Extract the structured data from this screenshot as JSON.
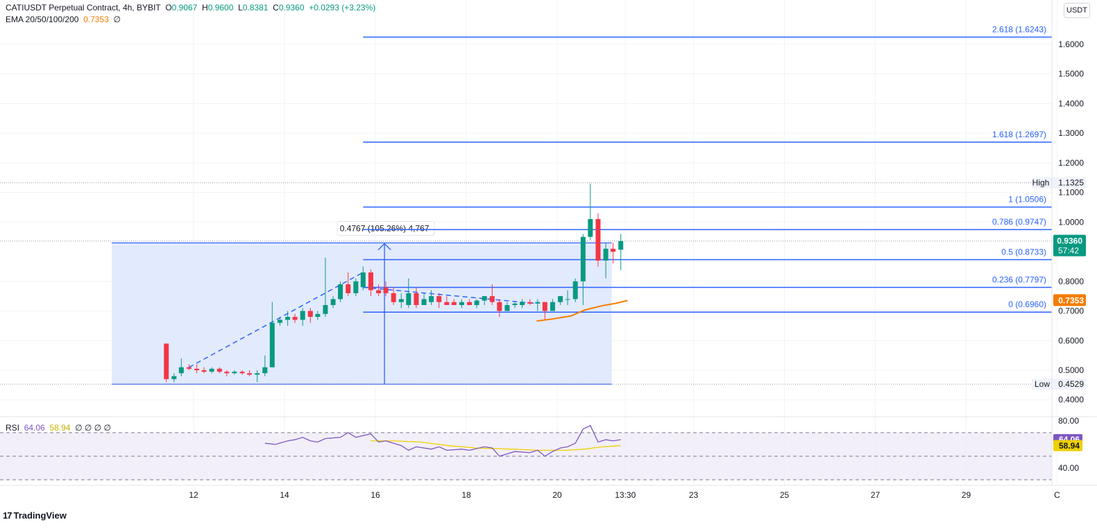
{
  "header": {
    "symbol": "CATIUSDT Perpetual Contract, 4h, BYBIT",
    "o_label": "O",
    "o": "0.9067",
    "h_label": "H",
    "h": "0.9600",
    "l_label": "L",
    "l": "0.8381",
    "c_label": "C",
    "c": "0.9360",
    "change": "+0.0293 (+3.23%)",
    "ema_label": "EMA 20/50/100/200",
    "ema_value": "0.7353",
    "ema_extra": "∅"
  },
  "currency": "USDT",
  "brand": {
    "logo": "17",
    "name": "TradingView"
  },
  "rsi_legend": {
    "label": "RSI",
    "v1": "64.06",
    "v2": "58.94",
    "rest": "∅ ∅ ∅ ∅"
  },
  "colors": {
    "up": "#089981",
    "down": "#f23645",
    "fib": "#2962ff",
    "ema": "#f57c00",
    "rsi": "#7e57c2",
    "rsi_ma": "#f0d000",
    "range_fill": "#dde6fd"
  },
  "chart_data": {
    "type": "candlestick",
    "title": "CATIUSDT Perpetual Contract, 4h, BYBIT",
    "ylim": [
      0.4,
      1.68
    ],
    "y_ticks": [
      "1.6000",
      "1.5000",
      "1.4000",
      "1.3000",
      "1.2000",
      "1.1000",
      "1.0000",
      "0.8000",
      "0.7000",
      "0.6000",
      "0.5000",
      "0.4000"
    ],
    "x_ticks": [
      {
        "label": "12",
        "day": 12
      },
      {
        "label": "14",
        "day": 14
      },
      {
        "label": "16",
        "day": 16
      },
      {
        "label": "18",
        "day": 18
      },
      {
        "label": "20",
        "day": 20
      },
      {
        "label": "13:30",
        "day": 21.5
      },
      {
        "label": "23",
        "day": 23
      },
      {
        "label": "25",
        "day": 25
      },
      {
        "label": "27",
        "day": 27
      },
      {
        "label": "29",
        "day": 29
      },
      {
        "label": "C",
        "day": 31
      }
    ],
    "candles": [
      {
        "d": 11.4,
        "o": 0.59,
        "h": 0.59,
        "l": 0.46,
        "c": 0.47
      },
      {
        "d": 11.57,
        "o": 0.47,
        "h": 0.49,
        "l": 0.46,
        "c": 0.48
      },
      {
        "d": 11.73,
        "o": 0.49,
        "h": 0.54,
        "l": 0.48,
        "c": 0.51
      },
      {
        "d": 11.9,
        "o": 0.51,
        "h": 0.52,
        "l": 0.5,
        "c": 0.505
      },
      {
        "d": 12.07,
        "o": 0.505,
        "h": 0.52,
        "l": 0.49,
        "c": 0.5
      },
      {
        "d": 12.23,
        "o": 0.5,
        "h": 0.51,
        "l": 0.49,
        "c": 0.495
      },
      {
        "d": 12.4,
        "o": 0.495,
        "h": 0.51,
        "l": 0.49,
        "c": 0.505
      },
      {
        "d": 12.57,
        "o": 0.505,
        "h": 0.51,
        "l": 0.49,
        "c": 0.495
      },
      {
        "d": 12.73,
        "o": 0.495,
        "h": 0.5,
        "l": 0.48,
        "c": 0.49
      },
      {
        "d": 12.9,
        "o": 0.49,
        "h": 0.5,
        "l": 0.485,
        "c": 0.495
      },
      {
        "d": 13.07,
        "o": 0.495,
        "h": 0.5,
        "l": 0.485,
        "c": 0.49
      },
      {
        "d": 13.23,
        "o": 0.49,
        "h": 0.5,
        "l": 0.48,
        "c": 0.485
      },
      {
        "d": 13.4,
        "o": 0.485,
        "h": 0.5,
        "l": 0.46,
        "c": 0.49
      },
      {
        "d": 13.57,
        "o": 0.49,
        "h": 0.55,
        "l": 0.48,
        "c": 0.51
      },
      {
        "d": 13.73,
        "o": 0.51,
        "h": 0.73,
        "l": 0.51,
        "c": 0.66
      },
      {
        "d": 13.9,
        "o": 0.66,
        "h": 0.68,
        "l": 0.65,
        "c": 0.67
      },
      {
        "d": 14.07,
        "o": 0.67,
        "h": 0.7,
        "l": 0.65,
        "c": 0.68
      },
      {
        "d": 14.23,
        "o": 0.68,
        "h": 0.69,
        "l": 0.66,
        "c": 0.67
      },
      {
        "d": 14.4,
        "o": 0.67,
        "h": 0.71,
        "l": 0.65,
        "c": 0.7
      },
      {
        "d": 14.57,
        "o": 0.7,
        "h": 0.71,
        "l": 0.66,
        "c": 0.68
      },
      {
        "d": 14.73,
        "o": 0.68,
        "h": 0.7,
        "l": 0.67,
        "c": 0.69
      },
      {
        "d": 14.9,
        "o": 0.69,
        "h": 0.88,
        "l": 0.68,
        "c": 0.72
      },
      {
        "d": 15.07,
        "o": 0.72,
        "h": 0.75,
        "l": 0.71,
        "c": 0.74
      },
      {
        "d": 15.23,
        "o": 0.74,
        "h": 0.8,
        "l": 0.73,
        "c": 0.79
      },
      {
        "d": 15.4,
        "o": 0.79,
        "h": 0.83,
        "l": 0.75,
        "c": 0.76
      },
      {
        "d": 15.57,
        "o": 0.76,
        "h": 0.81,
        "l": 0.75,
        "c": 0.8
      },
      {
        "d": 15.73,
        "o": 0.78,
        "h": 0.85,
        "l": 0.77,
        "c": 0.83
      },
      {
        "d": 15.9,
        "o": 0.83,
        "h": 0.84,
        "l": 0.75,
        "c": 0.77
      },
      {
        "d": 16.07,
        "o": 0.77,
        "h": 0.79,
        "l": 0.75,
        "c": 0.76
      },
      {
        "d": 16.23,
        "o": 0.78,
        "h": 0.8,
        "l": 0.75,
        "c": 0.76
      },
      {
        "d": 16.4,
        "o": 0.76,
        "h": 0.78,
        "l": 0.72,
        "c": 0.73
      },
      {
        "d": 16.57,
        "o": 0.73,
        "h": 0.76,
        "l": 0.71,
        "c": 0.74
      },
      {
        "d": 16.73,
        "o": 0.72,
        "h": 0.81,
        "l": 0.71,
        "c": 0.76
      },
      {
        "d": 16.9,
        "o": 0.76,
        "h": 0.78,
        "l": 0.71,
        "c": 0.72
      },
      {
        "d": 17.07,
        "o": 0.72,
        "h": 0.76,
        "l": 0.72,
        "c": 0.74
      },
      {
        "d": 17.23,
        "o": 0.73,
        "h": 0.77,
        "l": 0.72,
        "c": 0.75
      },
      {
        "d": 17.4,
        "o": 0.75,
        "h": 0.76,
        "l": 0.71,
        "c": 0.73
      },
      {
        "d": 17.57,
        "o": 0.73,
        "h": 0.75,
        "l": 0.72,
        "c": 0.72
      },
      {
        "d": 17.73,
        "o": 0.73,
        "h": 0.74,
        "l": 0.72,
        "c": 0.72
      },
      {
        "d": 17.9,
        "o": 0.72,
        "h": 0.74,
        "l": 0.71,
        "c": 0.73
      },
      {
        "d": 18.07,
        "o": 0.73,
        "h": 0.74,
        "l": 0.72,
        "c": 0.72
      },
      {
        "d": 18.23,
        "o": 0.72,
        "h": 0.74,
        "l": 0.71,
        "c": 0.735
      },
      {
        "d": 18.4,
        "o": 0.735,
        "h": 0.75,
        "l": 0.72,
        "c": 0.75
      },
      {
        "d": 18.57,
        "o": 0.75,
        "h": 0.79,
        "l": 0.72,
        "c": 0.73
      },
      {
        "d": 18.73,
        "o": 0.73,
        "h": 0.74,
        "l": 0.68,
        "c": 0.7
      },
      {
        "d": 18.9,
        "o": 0.7,
        "h": 0.73,
        "l": 0.7,
        "c": 0.72
      },
      {
        "d": 19.07,
        "o": 0.72,
        "h": 0.73,
        "l": 0.71,
        "c": 0.725
      },
      {
        "d": 19.23,
        "o": 0.72,
        "h": 0.74,
        "l": 0.71,
        "c": 0.73
      },
      {
        "d": 19.4,
        "o": 0.73,
        "h": 0.74,
        "l": 0.72,
        "c": 0.725
      },
      {
        "d": 19.57,
        "o": 0.725,
        "h": 0.74,
        "l": 0.7,
        "c": 0.73
      },
      {
        "d": 19.73,
        "o": 0.73,
        "h": 0.73,
        "l": 0.67,
        "c": 0.7
      },
      {
        "d": 19.9,
        "o": 0.7,
        "h": 0.74,
        "l": 0.7,
        "c": 0.73
      },
      {
        "d": 20.07,
        "o": 0.73,
        "h": 0.75,
        "l": 0.72,
        "c": 0.75
      },
      {
        "d": 20.23,
        "o": 0.74,
        "h": 0.77,
        "l": 0.72,
        "c": 0.74
      },
      {
        "d": 20.4,
        "o": 0.74,
        "h": 0.81,
        "l": 0.73,
        "c": 0.8
      },
      {
        "d": 20.57,
        "o": 0.8,
        "h": 0.96,
        "l": 0.72,
        "c": 0.95
      },
      {
        "d": 20.73,
        "o": 0.95,
        "h": 1.13,
        "l": 0.94,
        "c": 1.01
      },
      {
        "d": 20.9,
        "o": 1.01,
        "h": 1.03,
        "l": 0.85,
        "c": 0.87
      },
      {
        "d": 21.07,
        "o": 0.87,
        "h": 0.93,
        "l": 0.81,
        "c": 0.91
      },
      {
        "d": 21.23,
        "o": 0.91,
        "h": 0.93,
        "l": 0.86,
        "c": 0.9
      },
      {
        "d": 21.4,
        "o": 0.9067,
        "h": 0.96,
        "l": 0.8381,
        "c": 0.936
      }
    ],
    "ema": [
      {
        "d": 19.55,
        "v": 0.666
      },
      {
        "d": 19.9,
        "v": 0.673
      },
      {
        "d": 20.3,
        "v": 0.683
      },
      {
        "d": 20.6,
        "v": 0.703
      },
      {
        "d": 21.0,
        "v": 0.718
      },
      {
        "d": 21.3,
        "v": 0.726
      },
      {
        "d": 21.55,
        "v": 0.7353
      }
    ],
    "fib": {
      "x_start": 15.73,
      "x_end": 31,
      "levels": [
        {
          "label": "0 (0.6960)",
          "value": 0.696
        },
        {
          "label": "0.236 (0.7797)",
          "value": 0.7797
        },
        {
          "label": "0.5 (0.8733)",
          "value": 0.8733
        },
        {
          "label": "0.786 (0.9747)",
          "value": 0.9747
        },
        {
          "label": "1 (1.0506)",
          "value": 1.0506
        },
        {
          "label": "1.618 (1.2697)",
          "value": 1.2697
        },
        {
          "label": "2.618 (1.6243)",
          "value": 1.6243
        }
      ]
    },
    "range": {
      "x_start": 10.2,
      "x_end": 21.2,
      "low": 0.4529,
      "high": 0.9296,
      "arrow_x": 16.2,
      "label": "0.4767 (105.26%) 4,767"
    },
    "trend_dashes": [
      [
        {
          "d": 11.9,
          "v": 0.51
        },
        {
          "d": 15.73,
          "v": 0.83
        }
      ],
      [
        {
          "d": 15.73,
          "v": 0.78
        },
        {
          "d": 19.55,
          "v": 0.725
        }
      ]
    ],
    "high_line": {
      "label": "High",
      "value": 1.1325,
      "text": "1.1325"
    },
    "low_line": {
      "label": "Low",
      "value": 0.4529,
      "text": "0.4529"
    },
    "last_price": {
      "value": 0.936,
      "text": "0.9360",
      "countdown": "57:42"
    },
    "ema_tag": {
      "value": 0.7353,
      "text": "0.7353"
    },
    "rsi": {
      "ylim": [
        30,
        80
      ],
      "ticks": [
        "80.00",
        "40.00"
      ],
      "bands": [
        70,
        50,
        30
      ],
      "series": [
        {
          "d": 13.57,
          "v": 61
        },
        {
          "d": 13.8,
          "v": 60
        },
        {
          "d": 14.07,
          "v": 63
        },
        {
          "d": 14.23,
          "v": 64
        },
        {
          "d": 14.4,
          "v": 66
        },
        {
          "d": 14.57,
          "v": 63
        },
        {
          "d": 14.73,
          "v": 62
        },
        {
          "d": 14.9,
          "v": 65
        },
        {
          "d": 15.23,
          "v": 66
        },
        {
          "d": 15.4,
          "v": 70
        },
        {
          "d": 15.57,
          "v": 66
        },
        {
          "d": 15.9,
          "v": 69
        },
        {
          "d": 16.07,
          "v": 62
        },
        {
          "d": 16.23,
          "v": 63
        },
        {
          "d": 16.57,
          "v": 59
        },
        {
          "d": 16.73,
          "v": 55
        },
        {
          "d": 16.9,
          "v": 58
        },
        {
          "d": 17.23,
          "v": 56
        },
        {
          "d": 17.4,
          "v": 58
        },
        {
          "d": 17.57,
          "v": 55
        },
        {
          "d": 17.9,
          "v": 56
        },
        {
          "d": 18.07,
          "v": 55
        },
        {
          "d": 18.4,
          "v": 58
        },
        {
          "d": 18.57,
          "v": 57
        },
        {
          "d": 18.73,
          "v": 50
        },
        {
          "d": 18.9,
          "v": 52
        },
        {
          "d": 19.07,
          "v": 54
        },
        {
          "d": 19.4,
          "v": 53
        },
        {
          "d": 19.57,
          "v": 55
        },
        {
          "d": 19.73,
          "v": 50
        },
        {
          "d": 19.9,
          "v": 54
        },
        {
          "d": 20.07,
          "v": 57
        },
        {
          "d": 20.23,
          "v": 58
        },
        {
          "d": 20.4,
          "v": 61
        },
        {
          "d": 20.57,
          "v": 73
        },
        {
          "d": 20.73,
          "v": 76
        },
        {
          "d": 20.9,
          "v": 62
        },
        {
          "d": 21.07,
          "v": 64
        },
        {
          "d": 21.23,
          "v": 63
        },
        {
          "d": 21.4,
          "v": 64.06
        }
      ],
      "ma": [
        {
          "d": 15.9,
          "v": 63
        },
        {
          "d": 16.4,
          "v": 63
        },
        {
          "d": 17.0,
          "v": 62
        },
        {
          "d": 17.6,
          "v": 59
        },
        {
          "d": 18.2,
          "v": 57
        },
        {
          "d": 19.0,
          "v": 56
        },
        {
          "d": 19.6,
          "v": 55
        },
        {
          "d": 20.2,
          "v": 55
        },
        {
          "d": 20.6,
          "v": 56
        },
        {
          "d": 21.0,
          "v": 58
        },
        {
          "d": 21.4,
          "v": 58.94
        }
      ],
      "value_tags": [
        {
          "value": 64.06,
          "text": "64.06"
        },
        {
          "value": 58.94,
          "text": "58.94"
        }
      ]
    }
  }
}
